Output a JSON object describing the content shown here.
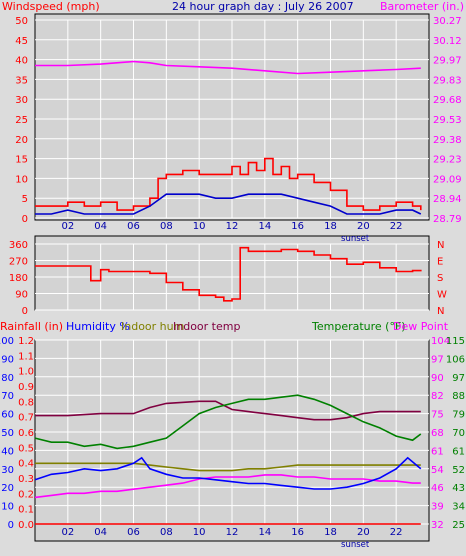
{
  "chart_data": [
    {
      "type": "line",
      "title": "24 hour graph day : July 26 2007",
      "left_axis_label": "Windspeed (mph)",
      "right_axis_label": "Barometer (in.)",
      "x_ticks": [
        "02",
        "04",
        "06",
        "08",
        "10",
        "12",
        "14",
        "16",
        "18",
        "20",
        "22"
      ],
      "x_marker": "sunset",
      "left_ticks": [
        "0",
        "5",
        "10",
        "15",
        "20",
        "25",
        "30",
        "35",
        "40",
        "45",
        "50"
      ],
      "right_ticks": [
        "28.79",
        "28.94",
        "29.09",
        "29.23",
        "29.38",
        "29.53",
        "29.68",
        "29.83",
        "29.97",
        "30.12",
        "30.27"
      ],
      "ylim_left": [
        0,
        50
      ],
      "ylim_right": [
        28.79,
        30.27
      ],
      "series": [
        {
          "name": "Windspeed (mph)",
          "axis": "left",
          "color": "#ff0000",
          "x": [
            0,
            1,
            2,
            3,
            4,
            5,
            6,
            7,
            7.5,
            8,
            9,
            10,
            11,
            12,
            12.5,
            13,
            13.5,
            14,
            14.5,
            15,
            15.5,
            16,
            17,
            18,
            19,
            20,
            21,
            22,
            23,
            23.5
          ],
          "y": [
            3,
            3,
            4,
            3,
            4,
            2,
            3,
            5,
            10,
            11,
            12,
            11,
            11,
            13,
            11,
            14,
            12,
            15,
            11,
            13,
            10,
            11,
            9,
            7,
            3,
            2,
            3,
            4,
            3,
            2
          ]
        },
        {
          "name": "Average wind",
          "axis": "left",
          "color": "#0000cc",
          "x": [
            0,
            1,
            2,
            3,
            4,
            5,
            6,
            7,
            8,
            9,
            10,
            11,
            12,
            13,
            14,
            15,
            16,
            17,
            18,
            19,
            20,
            21,
            22,
            23,
            23.5
          ],
          "y": [
            1,
            1,
            2,
            1,
            1,
            1,
            1,
            3,
            6,
            6,
            6,
            5,
            5,
            6,
            6,
            6,
            5,
            4,
            3,
            1,
            1,
            1,
            2,
            2,
            1
          ]
        },
        {
          "name": "Barometer (in.)",
          "axis": "right",
          "color": "#ff00ff",
          "x": [
            0,
            2,
            4,
            6,
            7,
            8,
            10,
            12,
            14,
            16,
            18,
            20,
            22,
            23.5
          ],
          "y": [
            29.93,
            29.93,
            29.94,
            29.96,
            29.95,
            29.93,
            29.92,
            29.91,
            29.89,
            29.87,
            29.88,
            29.89,
            29.9,
            29.91
          ]
        }
      ]
    },
    {
      "type": "scatter",
      "title": "",
      "left_ticks": [
        "0",
        "90",
        "180",
        "270",
        "360"
      ],
      "right_ticks": [
        "N",
        "W",
        "S",
        "E",
        "N"
      ],
      "ylim": [
        0,
        360
      ],
      "series": [
        {
          "name": "Wind direction",
          "color": "#ff0000",
          "x": [
            0,
            1,
            2,
            3,
            3.4,
            4,
            4.5,
            5,
            6,
            7,
            8,
            9,
            10,
            11,
            11.5,
            12,
            12.5,
            13,
            14,
            15,
            16,
            17,
            18,
            19,
            20,
            21,
            22,
            23,
            23.5
          ],
          "y": [
            240,
            240,
            240,
            240,
            160,
            220,
            210,
            210,
            210,
            200,
            150,
            110,
            80,
            70,
            50,
            60,
            340,
            320,
            320,
            330,
            320,
            300,
            280,
            250,
            260,
            230,
            210,
            215,
            220
          ]
        }
      ]
    },
    {
      "type": "line",
      "legend": [
        "Rainfall (in)",
        "Humidity %",
        "Indoor hum",
        "Indoor temp",
        "Temperature (°F)",
        "Dew Point"
      ],
      "x_ticks": [
        "02",
        "04",
        "06",
        "08",
        "10",
        "12",
        "14",
        "16",
        "18",
        "20",
        "22"
      ],
      "x_marker": "sunset",
      "rain_ticks": [
        "0.0",
        "0.1",
        "0.2",
        "0.3",
        "0.4",
        "0.5",
        "0.6",
        "0.7",
        "0.8",
        "0.9",
        "1.0",
        "1.1",
        "1.2"
      ],
      "humidity_ticks": [
        "0",
        "10",
        "20",
        "30",
        "40",
        "50",
        "60",
        "70",
        "80",
        "90",
        "100"
      ],
      "temp_ticks_1": [
        "25",
        "34",
        "43",
        "52",
        "61",
        "70",
        "79",
        "88",
        "97",
        "106",
        "115"
      ],
      "temp_ticks_2": [
        "32",
        "39",
        "46",
        "54",
        "61",
        "68",
        "75",
        "82",
        "90",
        "97",
        "104"
      ],
      "ylim_humidity": [
        0,
        100
      ],
      "ylim_temp": [
        25,
        115
      ],
      "series": [
        {
          "name": "Rainfall (in)",
          "axis": "humidity",
          "color": "#ff0000",
          "x": [
            0,
            23.5
          ],
          "y": [
            0,
            0
          ]
        },
        {
          "name": "Humidity %",
          "axis": "humidity",
          "color": "#0000ff",
          "x": [
            0,
            1,
            2,
            3,
            4,
            5,
            6,
            6.5,
            7,
            8,
            9,
            10,
            11,
            12,
            13,
            14,
            15,
            16,
            17,
            18,
            19,
            20,
            21,
            22,
            22.7,
            23.5
          ],
          "y": [
            24,
            27,
            28,
            30,
            29,
            30,
            33,
            36,
            30,
            27,
            25,
            25,
            24,
            23,
            22,
            22,
            21,
            20,
            19,
            19,
            20,
            22,
            25,
            30,
            36,
            30
          ]
        },
        {
          "name": "Indoor hum",
          "axis": "humidity",
          "color": "#808000",
          "x": [
            0,
            6,
            7,
            8,
            9,
            10,
            11,
            12,
            13,
            14,
            15,
            16,
            17,
            18,
            19,
            20,
            21,
            22,
            23,
            23.5
          ],
          "y": [
            33,
            33,
            32,
            31,
            30,
            29,
            29,
            29,
            30,
            30,
            31,
            32,
            32,
            32,
            32,
            32,
            32,
            32,
            32,
            32
          ]
        },
        {
          "name": "Indoor temp",
          "axis": "temp",
          "color": "#800040",
          "x": [
            0,
            2,
            4,
            6,
            7,
            8,
            10,
            11,
            12,
            13,
            14,
            15,
            16,
            17,
            18,
            19,
            20,
            21,
            22,
            23.5
          ],
          "y": [
            78,
            78,
            79,
            79,
            82,
            84,
            85,
            85,
            81,
            80,
            79,
            78,
            77,
            76,
            76,
            77,
            79,
            80,
            80,
            80
          ]
        },
        {
          "name": "Temperature (°F)",
          "axis": "temp",
          "color": "#008000",
          "x": [
            0,
            1,
            2,
            3,
            4,
            5,
            6,
            7,
            8,
            9,
            10,
            11,
            12,
            13,
            14,
            15,
            16,
            17,
            18,
            19,
            20,
            21,
            22,
            23,
            23.5
          ],
          "y": [
            67,
            65,
            65,
            63,
            64,
            62,
            63,
            65,
            67,
            73,
            79,
            82,
            84,
            86,
            86,
            87,
            88,
            86,
            83,
            79,
            75,
            72,
            68,
            66,
            69
          ]
        },
        {
          "name": "Dew Point",
          "axis": "temp",
          "color": "#ff00ff",
          "x": [
            0,
            1,
            2,
            3,
            4,
            5,
            6,
            7,
            8,
            9,
            10,
            11,
            12,
            13,
            14,
            15,
            16,
            17,
            18,
            19,
            20,
            21,
            22,
            23,
            23.5
          ],
          "y": [
            38,
            39,
            40,
            40,
            41,
            41,
            42,
            43,
            44,
            45,
            47,
            48,
            48,
            48,
            49,
            49,
            48,
            48,
            47,
            47,
            47,
            46,
            46,
            45,
            45
          ]
        }
      ]
    }
  ]
}
